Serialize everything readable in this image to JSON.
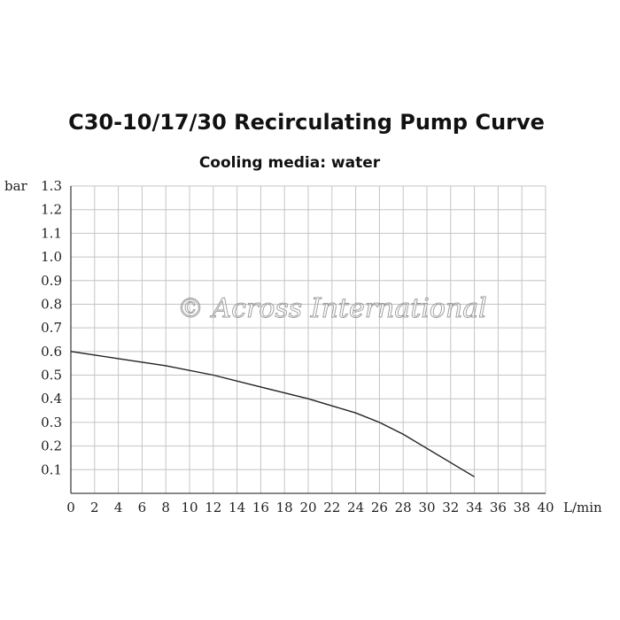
{
  "chart_data": {
    "type": "line",
    "title": "C30-10/17/30 Recirculating Pump Curve",
    "subtitle": "Cooling media: water",
    "watermark": "© Across International",
    "xlabel": "L/min",
    "ylabel": "bar",
    "xlim": [
      0,
      40
    ],
    "ylim": [
      0,
      1.3
    ],
    "x_ticks": [
      "0",
      "2",
      "4",
      "6",
      "8",
      "10",
      "12",
      "14",
      "16",
      "18",
      "20",
      "22",
      "24",
      "26",
      "28",
      "30",
      "32",
      "34",
      "36",
      "38",
      "40"
    ],
    "y_ticks": [
      "0.1",
      "0.2",
      "0.3",
      "0.4",
      "0.5",
      "0.6",
      "0.7",
      "0.8",
      "0.9",
      "1.0",
      "1.1",
      "1.2",
      "1.3"
    ],
    "y_tick_values": [
      0.1,
      0.2,
      0.3,
      0.4,
      0.5,
      0.6,
      0.7,
      0.8,
      0.9,
      1.0,
      1.1,
      1.2,
      1.3
    ],
    "grid": true,
    "series": [
      {
        "x": [
          0,
          4,
          8,
          12,
          16,
          20,
          24,
          26,
          28,
          30,
          32,
          34
        ],
        "y": [
          0.6,
          0.57,
          0.54,
          0.5,
          0.45,
          0.4,
          0.34,
          0.3,
          0.25,
          0.19,
          0.13,
          0.07
        ]
      }
    ],
    "colors": {
      "curve": "#222222",
      "grid": "#c4c4c4",
      "axis": "#444444"
    }
  }
}
